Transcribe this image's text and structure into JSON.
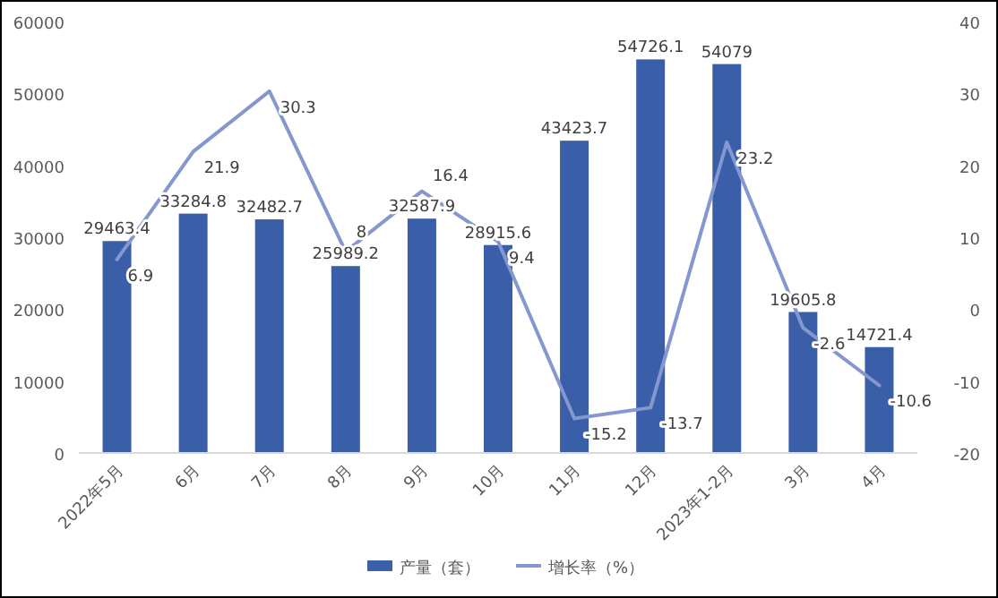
{
  "chart_data": {
    "type": "bar",
    "categories": [
      "2022年5月",
      "6月",
      "7月",
      "8月",
      "9月",
      "10月",
      "11月",
      "12月",
      "2023年1-2月",
      "3月",
      "4月"
    ],
    "series": [
      {
        "name": "产量（套）",
        "color": "#3b5ea8",
        "values": [
          29463.4,
          33284.8,
          32482.7,
          25989.2,
          32587.9,
          28915.6,
          43423.7,
          54726.1,
          54079,
          19605.8,
          14721.4
        ]
      },
      {
        "name": "增长率（%）",
        "type": "line",
        "axis": "y2",
        "color": "#8497cf",
        "values": [
          6.9,
          21.9,
          30.3,
          8,
          16.4,
          9.4,
          -15.2,
          -13.7,
          23.2,
          -2.6,
          -10.6
        ]
      }
    ],
    "ylim": [
      0,
      60000
    ],
    "yticks": [
      0,
      10000,
      20000,
      30000,
      40000,
      50000,
      60000
    ],
    "y2lim": [
      -20,
      40
    ],
    "y2ticks": [
      -20,
      -10,
      0,
      10,
      20,
      30,
      40
    ],
    "legend": "bottom",
    "data_labels": true,
    "marker": "none",
    "line_style": "solid"
  }
}
